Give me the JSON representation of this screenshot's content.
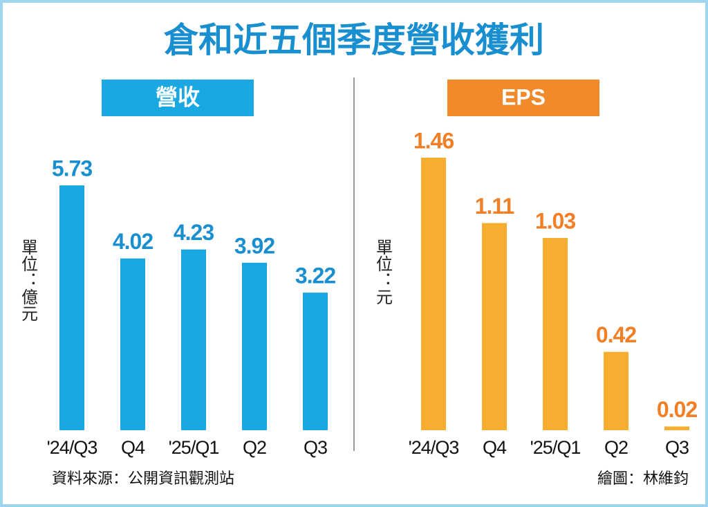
{
  "title": "倉和近五個季度營收獲利",
  "source": "資料來源：公開資訊觀測站",
  "credit": "繪圖：林維鈞",
  "chart_data": [
    {
      "type": "bar",
      "title": "營收",
      "unit": "單位：億元",
      "categories": [
        "'24/Q3",
        "Q4",
        "'25/Q1",
        "Q2",
        "Q3"
      ],
      "values": [
        5.73,
        4.02,
        4.23,
        3.92,
        3.22
      ],
      "color": "#1aa8e2",
      "label_color": "#1a8fd0"
    },
    {
      "type": "bar",
      "title": "EPS",
      "unit": "單位：元",
      "categories": [
        "'24/Q3",
        "Q4",
        "'25/Q1",
        "Q2",
        "Q3"
      ],
      "values": [
        1.46,
        1.11,
        1.03,
        0.42,
        0.02
      ],
      "color": "#f5ae2f",
      "label_color": "#f07f25",
      "header_color": "#f08a2a"
    }
  ]
}
